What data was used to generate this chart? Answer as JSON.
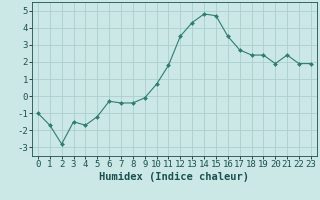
{
  "x": [
    0,
    1,
    2,
    3,
    4,
    5,
    6,
    7,
    8,
    9,
    10,
    11,
    12,
    13,
    14,
    15,
    16,
    17,
    18,
    19,
    20,
    21,
    22,
    23
  ],
  "y": [
    -1.0,
    -1.7,
    -2.8,
    -1.5,
    -1.7,
    -1.2,
    -0.3,
    -0.4,
    -0.4,
    -0.1,
    0.7,
    1.8,
    3.5,
    4.3,
    4.8,
    4.7,
    3.5,
    2.7,
    2.4,
    2.4,
    1.9,
    2.4,
    1.9,
    1.9
  ],
  "line_color": "#2e7d6e",
  "marker": "D",
  "marker_size": 2.0,
  "bg_color": "#cce8e6",
  "grid_color": "#aacfcc",
  "xlabel": "Humidex (Indice chaleur)",
  "xlim": [
    -0.5,
    23.5
  ],
  "ylim": [
    -3.5,
    5.5
  ],
  "yticks": [
    -3,
    -2,
    -1,
    0,
    1,
    2,
    3,
    4,
    5
  ],
  "xticks": [
    0,
    1,
    2,
    3,
    4,
    5,
    6,
    7,
    8,
    9,
    10,
    11,
    12,
    13,
    14,
    15,
    16,
    17,
    18,
    19,
    20,
    21,
    22,
    23
  ],
  "font_color": "#1a5050",
  "tick_fontsize": 6.5,
  "xlabel_fontsize": 7.5
}
